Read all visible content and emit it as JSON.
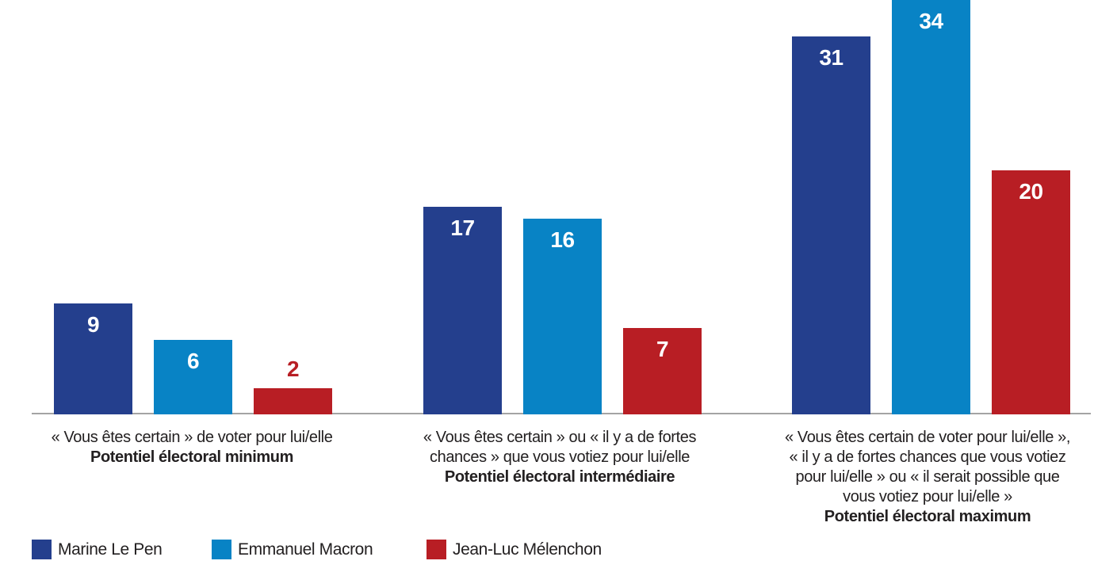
{
  "chart_data": {
    "type": "bar",
    "title": "",
    "grid": false,
    "legend_position": "bottom-left",
    "ylim": [
      0,
      34
    ],
    "background_color": "#FFFFFF",
    "axis_line_color": "#A4A4A4",
    "text_color": "#232021",
    "value_label_style": "white bold inside bar top; printed in series color above bar when bar is too short",
    "categories": [
      {
        "lines": [
          "« Vous êtes certain » de voter pour lui/elle"
        ],
        "bold": "Potentiel électoral minimum"
      },
      {
        "lines": [
          "« Vous êtes certain » ou « il y a de fortes",
          "chances » que vous votiez pour lui/elle"
        ],
        "bold": "Potentiel électoral intermédiaire"
      },
      {
        "lines": [
          "« Vous êtes certain de voter pour lui/elle »,",
          "« il y a de fortes chances que vous votiez",
          "pour lui/elle » ou « il serait possible que",
          "vous votiez pour lui/elle »"
        ],
        "bold": "Potentiel électoral maximum"
      }
    ],
    "series": [
      {
        "name": "Marine Le Pen",
        "color": "#243F8D",
        "values": [
          9,
          17,
          31
        ]
      },
      {
        "name": "Emmanuel Macron",
        "color": "#0883C5",
        "values": [
          6,
          16,
          34
        ]
      },
      {
        "name": "Jean-Luc Mélenchon",
        "color": "#B81E24",
        "values": [
          2,
          7,
          20
        ]
      }
    ]
  }
}
